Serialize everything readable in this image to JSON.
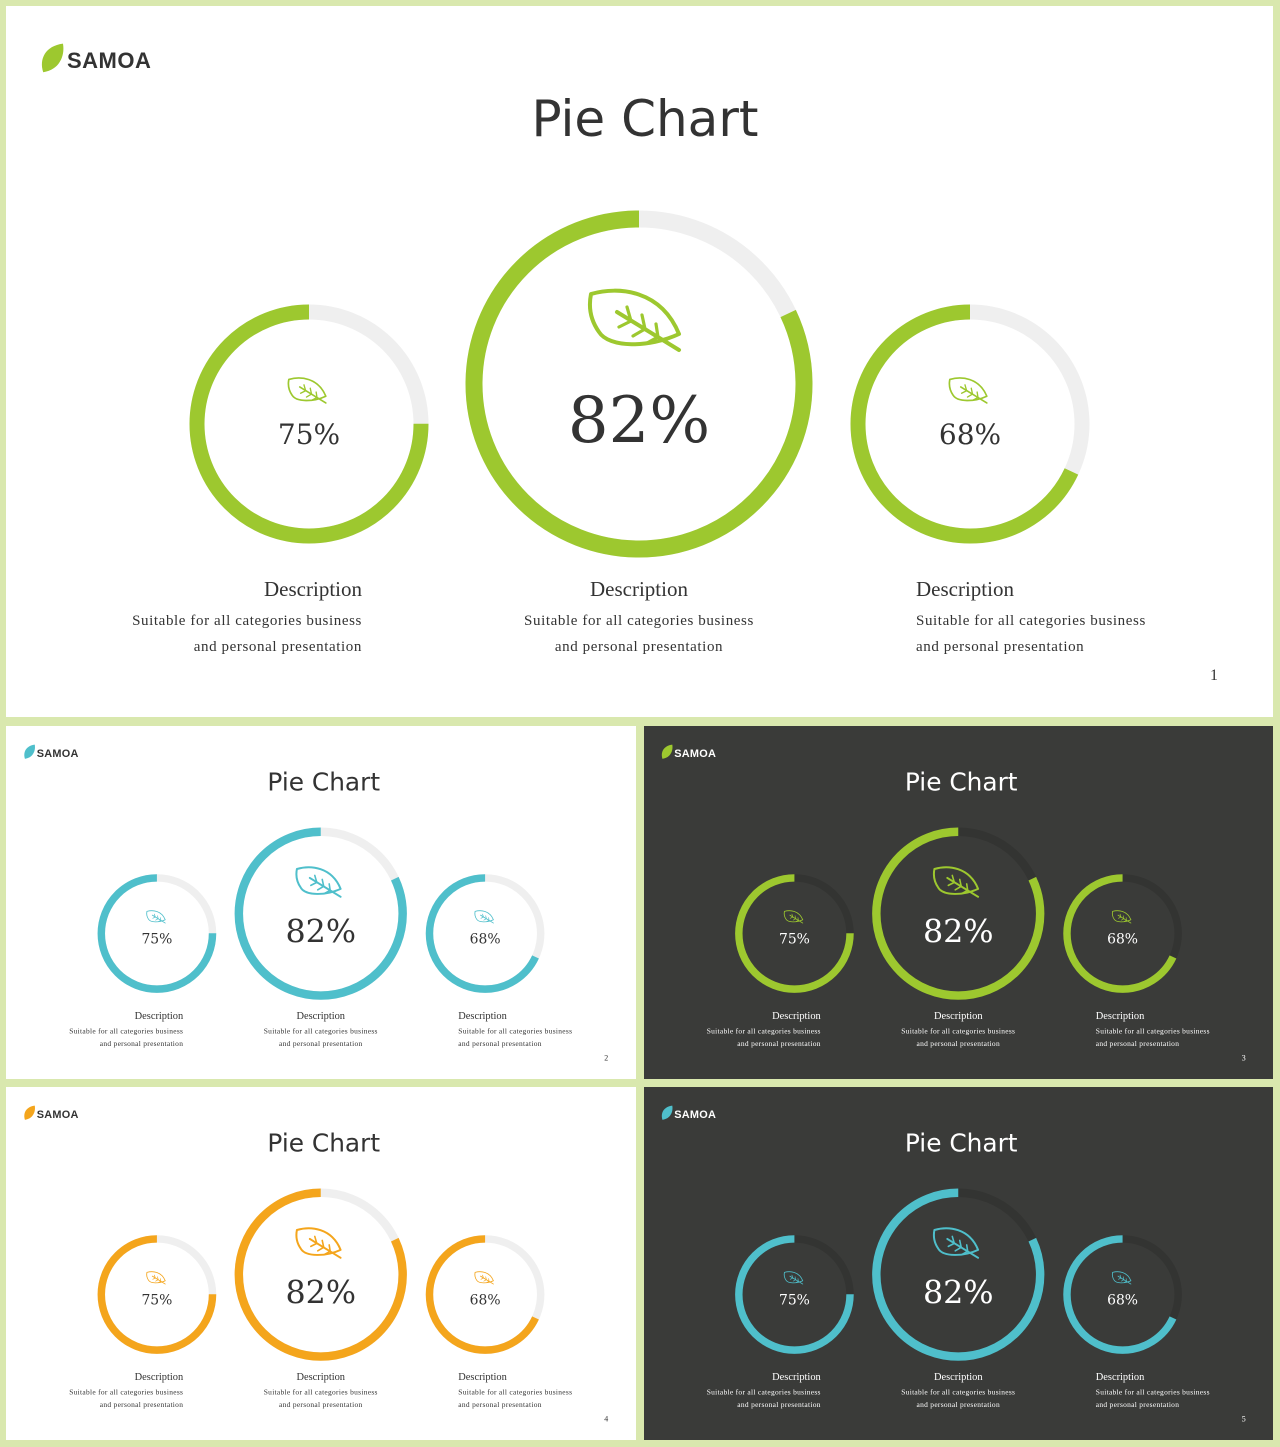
{
  "brand": "SAMOA",
  "slides": [
    {
      "theme": "light",
      "accent": "#9dc82f",
      "page_number": "1",
      "title": "Pie Chart",
      "charts": [
        {
          "value": 75,
          "label": "75%",
          "desc_title": "Description",
          "desc_line1": "Suitable  for  all  categories  business",
          "desc_line2": "and  personal  presentation",
          "align": "right"
        },
        {
          "value": 82,
          "label": "82%",
          "desc_title": "Description",
          "desc_line1": "Suitable  for  all  categories  business",
          "desc_line2": "and  personal  presentation",
          "align": "center"
        },
        {
          "value": 68,
          "label": "68%",
          "desc_title": "Description",
          "desc_line1": "Suitable  for  all  categories  business",
          "desc_line2": "and  personal  presentation",
          "align": "left"
        }
      ]
    },
    {
      "theme": "light",
      "accent": "#4fbfcb",
      "page_number": "2",
      "title": "Pie Chart",
      "charts": [
        {
          "value": 75,
          "label": "75%",
          "desc_title": "Description",
          "desc_line1": "Suitable  for  all  categories  business",
          "desc_line2": "and  personal  presentation",
          "align": "right"
        },
        {
          "value": 82,
          "label": "82%",
          "desc_title": "Description",
          "desc_line1": "Suitable  for  all  categories  business",
          "desc_line2": "and  personal  presentation",
          "align": "center"
        },
        {
          "value": 68,
          "label": "68%",
          "desc_title": "Description",
          "desc_line1": "Suitable  for  all  categories  business",
          "desc_line2": "and  personal  presentation",
          "align": "left"
        }
      ]
    },
    {
      "theme": "dark",
      "accent": "#9dc82f",
      "page_number": "3",
      "title": "Pie Chart",
      "charts": [
        {
          "value": 75,
          "label": "75%",
          "desc_title": "Description",
          "desc_line1": "Suitable  for  all  categories  business",
          "desc_line2": "and  personal  presentation",
          "align": "right"
        },
        {
          "value": 82,
          "label": "82%",
          "desc_title": "Description",
          "desc_line1": "Suitable  for  all  categories  business",
          "desc_line2": "and  personal  presentation",
          "align": "center"
        },
        {
          "value": 68,
          "label": "68%",
          "desc_title": "Description",
          "desc_line1": "Suitable  for  all  categories  business",
          "desc_line2": "and  personal  presentation",
          "align": "left"
        }
      ]
    },
    {
      "theme": "light",
      "accent": "#f4a51c",
      "page_number": "4",
      "title": "Pie Chart",
      "charts": [
        {
          "value": 75,
          "label": "75%",
          "desc_title": "Description",
          "desc_line1": "Suitable  for  all  categories  business",
          "desc_line2": "and  personal  presentation",
          "align": "right"
        },
        {
          "value": 82,
          "label": "82%",
          "desc_title": "Description",
          "desc_line1": "Suitable  for  all  categories  business",
          "desc_line2": "and  personal  presentation",
          "align": "center"
        },
        {
          "value": 68,
          "label": "68%",
          "desc_title": "Description",
          "desc_line1": "Suitable  for  all  categories  business",
          "desc_line2": "and  personal  presentation",
          "align": "left"
        }
      ]
    },
    {
      "theme": "dark",
      "accent": "#4fbfcb",
      "page_number": "5",
      "title": "Pie Chart",
      "charts": [
        {
          "value": 75,
          "label": "75%",
          "desc_title": "Description",
          "desc_line1": "Suitable  for  all  categories  business",
          "desc_line2": "and  personal  presentation",
          "align": "right"
        },
        {
          "value": 82,
          "label": "82%",
          "desc_title": "Description",
          "desc_line1": "Suitable  for  all  categories  business",
          "desc_line2": "and  personal  presentation",
          "align": "center"
        },
        {
          "value": 68,
          "label": "68%",
          "desc_title": "Description",
          "desc_line1": "Suitable  for  all  categories  business",
          "desc_line2": "and  personal  presentation",
          "align": "left"
        }
      ]
    }
  ],
  "colors": {
    "frame": "#d9e8ae",
    "light_bg": "#ffffff",
    "dark_bg": "#3a3b39",
    "light_track": "#efefef",
    "dark_track": "#333432",
    "light_text": "#333333",
    "dark_text": "#ffffff"
  },
  "chart_data": [
    {
      "type": "pie",
      "style": "donut",
      "slide": 1,
      "categories": [
        "75%",
        "82%",
        "68%"
      ],
      "values": [
        75,
        82,
        68
      ],
      "title": "Pie Chart"
    },
    {
      "type": "pie",
      "style": "donut",
      "slide": 2,
      "categories": [
        "75%",
        "82%",
        "68%"
      ],
      "values": [
        75,
        82,
        68
      ],
      "title": "Pie Chart"
    },
    {
      "type": "pie",
      "style": "donut",
      "slide": 3,
      "categories": [
        "75%",
        "82%",
        "68%"
      ],
      "values": [
        75,
        82,
        68
      ],
      "title": "Pie Chart"
    },
    {
      "type": "pie",
      "style": "donut",
      "slide": 4,
      "categories": [
        "75%",
        "82%",
        "68%"
      ],
      "values": [
        75,
        82,
        68
      ],
      "title": "Pie Chart"
    },
    {
      "type": "pie",
      "style": "donut",
      "slide": 5,
      "categories": [
        "75%",
        "82%",
        "68%"
      ],
      "values": [
        75,
        82,
        68
      ],
      "title": "Pie Chart"
    }
  ]
}
